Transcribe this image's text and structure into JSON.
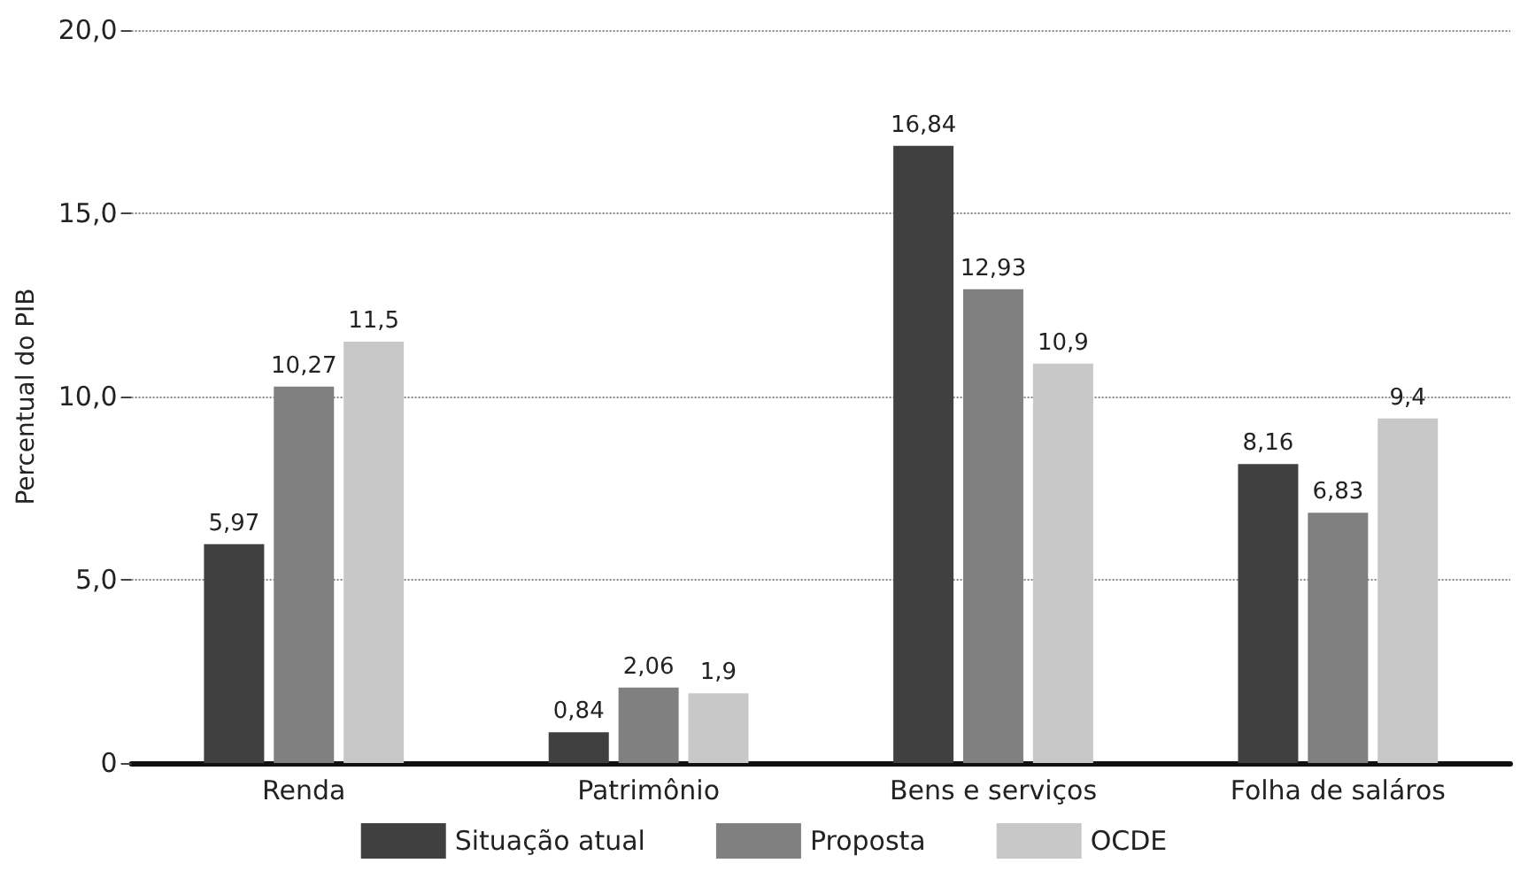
{
  "chart_data": {
    "type": "bar",
    "ylabel": "Percentual do PIB",
    "categories": [
      "Renda",
      "Patrimônio",
      "Bens e serviços",
      "Folha de saláros"
    ],
    "series": [
      {
        "name": "Situação atual",
        "color": "#404040",
        "values": [
          5.97,
          0.84,
          16.84,
          8.16
        ],
        "value_labels": [
          "5,97",
          "0,84",
          "16,84",
          "8,16"
        ]
      },
      {
        "name": "Proposta",
        "color": "#808080",
        "values": [
          10.27,
          2.06,
          12.93,
          6.83
        ],
        "value_labels": [
          "10,27",
          "2,06",
          "12,93",
          "6,83"
        ]
      },
      {
        "name": "OCDE",
        "color": "#c8c8c8",
        "values": [
          11.5,
          1.9,
          10.9,
          9.4
        ],
        "value_labels": [
          "11,5",
          "1,9",
          "10,9",
          "9,4"
        ]
      }
    ],
    "ylim": [
      0,
      20
    ],
    "yticks": [
      0,
      {
        "value": 5,
        "label": "5,0"
      },
      {
        "value": 10,
        "label": "10,0"
      },
      {
        "value": 15,
        "label": "15,0"
      },
      {
        "value": 20,
        "label": "20,0"
      }
    ],
    "grid": "y",
    "legend": "bottom"
  }
}
